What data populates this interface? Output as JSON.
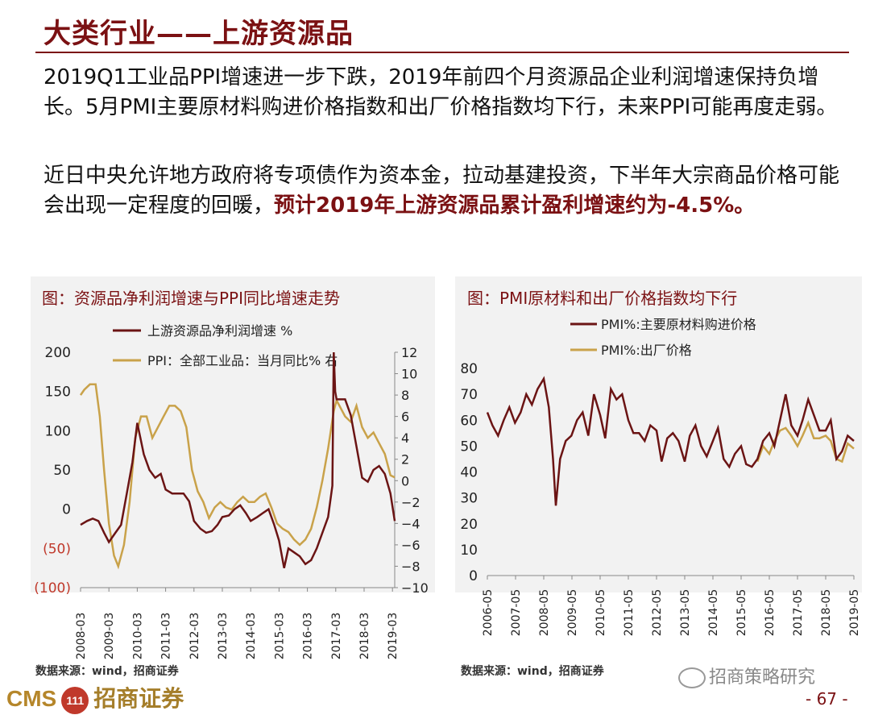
{
  "header": {
    "title": "大类行业——上游资源品"
  },
  "body": {
    "para1": "2019Q1工业品PPI增速进一步下跌，2019年前四个月资源品企业利润增速保持负增长。5月PMI主要原材料购进价格指数和出厂价格指数均下行，未来PPI可能再度走弱。",
    "para2_plain": "近日中央允许地方政府将专项债作为资本金，拉动基建投资，下半年大宗商品价格可能会出现一定程度的回暖，",
    "para2_emph": "预计2019年上游资源品累计盈利增速约为-4.5%。"
  },
  "colors": {
    "accent": "#7b1113",
    "series_dark": "#6b1414",
    "series_gold": "#c9a24a",
    "neg_label": "#c0392b"
  },
  "chart_data": [
    {
      "type": "line",
      "title": "图：资源品净利润增速与PPI同比增速走势",
      "x": [
        "2008-03",
        "2009-03",
        "2010-03",
        "2011-03",
        "2012-03",
        "2013-03",
        "2014-03",
        "2015-03",
        "2016-03",
        "2017-03",
        "2018-03",
        "2019-03"
      ],
      "left_ylim": [
        -100,
        200
      ],
      "left_ticks": [
        "200",
        "150",
        "100",
        "50",
        "0",
        "(50)",
        "(100)"
      ],
      "right_ylim": [
        -10,
        12
      ],
      "right_ticks": [
        "12",
        "10",
        "8",
        "6",
        "4",
        "2",
        "0",
        "−2",
        "−4",
        "−6",
        "−8",
        "−10"
      ],
      "source": "数据来源：wind，招商证券",
      "series": [
        {
          "name": "上游资源品净利润增速 %",
          "axis": "left",
          "x": [
            2008.17,
            2008.4,
            2008.6,
            2008.8,
            2009.0,
            2009.17,
            2009.4,
            2009.6,
            2009.8,
            2010.0,
            2010.17,
            2010.4,
            2010.6,
            2010.8,
            2011.0,
            2011.17,
            2011.4,
            2011.6,
            2011.8,
            2012.0,
            2012.17,
            2012.4,
            2012.6,
            2012.8,
            2013.0,
            2013.17,
            2013.4,
            2013.6,
            2013.8,
            2014.0,
            2014.17,
            2014.4,
            2014.6,
            2014.8,
            2015.0,
            2015.17,
            2015.35,
            2015.5,
            2015.7,
            2015.9,
            2016.1,
            2016.3,
            2016.5,
            2016.7,
            2016.9,
            2017.05,
            2017.1,
            2017.15,
            2017.2,
            2017.3,
            2017.5,
            2017.7,
            2017.9,
            2018.1,
            2018.3,
            2018.5,
            2018.7,
            2018.9,
            2019.1,
            2019.25
          ],
          "values": [
            -20,
            -15,
            -12,
            -15,
            -30,
            -42,
            -30,
            -20,
            20,
            60,
            110,
            70,
            50,
            40,
            45,
            25,
            20,
            20,
            20,
            10,
            -15,
            -25,
            -30,
            -28,
            -20,
            -10,
            -8,
            0,
            5,
            -5,
            -15,
            -10,
            -5,
            0,
            -20,
            -40,
            -75,
            -50,
            -55,
            -60,
            -70,
            -65,
            -50,
            -30,
            -10,
            30,
            200,
            150,
            140,
            140,
            140,
            120,
            80,
            40,
            35,
            50,
            55,
            45,
            20,
            -15
          ]
        },
        {
          "name": "PPI：全部工业品：当月同比%  右",
          "axis": "right",
          "x": [
            2008.17,
            2008.3,
            2008.5,
            2008.7,
            2008.85,
            2009.0,
            2009.17,
            2009.35,
            2009.5,
            2009.7,
            2009.9,
            2010.1,
            2010.3,
            2010.5,
            2010.7,
            2010.9,
            2011.1,
            2011.3,
            2011.5,
            2011.7,
            2011.9,
            2012.1,
            2012.3,
            2012.5,
            2012.7,
            2012.9,
            2013.1,
            2013.3,
            2013.5,
            2013.7,
            2013.9,
            2014.1,
            2014.3,
            2014.5,
            2014.7,
            2014.9,
            2015.1,
            2015.3,
            2015.5,
            2015.7,
            2015.9,
            2016.1,
            2016.3,
            2016.5,
            2016.7,
            2016.9,
            2017.1,
            2017.2,
            2017.3,
            2017.5,
            2017.7,
            2017.9,
            2018.1,
            2018.3,
            2018.5,
            2018.7,
            2018.9,
            2019.1,
            2019.25
          ],
          "values": [
            8,
            8.5,
            9,
            9,
            6,
            1,
            -4,
            -7,
            -8,
            -6,
            -2,
            4,
            6,
            6,
            4,
            5,
            6,
            7,
            7,
            6.5,
            5,
            1,
            -1,
            -2,
            -3.5,
            -2.5,
            -2,
            -2.5,
            -2.7,
            -2,
            -1.5,
            -2,
            -2,
            -1.5,
            -1.2,
            -2.5,
            -4,
            -4.5,
            -4.8,
            -5.5,
            -6,
            -5.5,
            -4.5,
            -2.5,
            0,
            3,
            6.5,
            7.5,
            7,
            6,
            5.5,
            7,
            5,
            4,
            4.5,
            3.5,
            2.5,
            0.5,
            0.3
          ]
        }
      ]
    },
    {
      "type": "line",
      "title": "图：PMI原材料和出厂价格指数均下行",
      "x": [
        "2006-05",
        "2007-05",
        "2008-05",
        "2009-05",
        "2010-05",
        "2011-05",
        "2012-05",
        "2013-05",
        "2014-05",
        "2015-05",
        "2016-05",
        "2017-05",
        "2018-05",
        "2019-05"
      ],
      "ylim": [
        0,
        80
      ],
      "yticks": [
        "80",
        "70",
        "60",
        "50",
        "40",
        "30",
        "20",
        "10",
        "0"
      ],
      "source": "数据来源：wind，招商证券",
      "series": [
        {
          "name": "PMI%:主要原材料购进价格",
          "x": [
            2006.42,
            2006.6,
            2006.8,
            2007.0,
            2007.2,
            2007.4,
            2007.6,
            2007.8,
            2008.0,
            2008.2,
            2008.42,
            2008.6,
            2008.75,
            2008.85,
            2009.0,
            2009.2,
            2009.4,
            2009.6,
            2009.8,
            2010.0,
            2010.2,
            2010.42,
            2010.6,
            2010.8,
            2011.0,
            2011.2,
            2011.42,
            2011.6,
            2011.8,
            2012.0,
            2012.2,
            2012.42,
            2012.6,
            2012.8,
            2013.0,
            2013.2,
            2013.42,
            2013.6,
            2013.8,
            2014.0,
            2014.2,
            2014.42,
            2014.6,
            2014.8,
            2015.0,
            2015.2,
            2015.42,
            2015.6,
            2015.8,
            2016.0,
            2016.2,
            2016.42,
            2016.6,
            2016.8,
            2017.0,
            2017.2,
            2017.42,
            2017.6,
            2017.8,
            2018.0,
            2018.2,
            2018.42,
            2018.6,
            2018.8,
            2019.0,
            2019.2,
            2019.42
          ],
          "values": [
            63,
            58,
            54,
            60,
            65,
            59,
            63,
            70,
            66,
            72,
            76,
            65,
            45,
            27,
            45,
            52,
            54,
            60,
            63,
            54,
            70,
            62,
            53,
            72,
            68,
            70,
            60,
            55,
            55,
            52,
            58,
            56,
            44,
            53,
            55,
            52,
            44,
            54,
            58,
            50,
            46,
            52,
            57,
            45,
            42,
            47,
            50,
            43,
            42,
            45,
            52,
            55,
            50,
            60,
            70,
            58,
            54,
            60,
            68,
            62,
            56,
            56,
            60,
            45,
            48,
            54,
            52
          ]
        },
        {
          "name": "PMI%:出厂价格",
          "x": [
            2016.0,
            2016.2,
            2016.42,
            2016.6,
            2016.8,
            2017.0,
            2017.2,
            2017.42,
            2017.6,
            2017.8,
            2018.0,
            2018.2,
            2018.42,
            2018.6,
            2018.8,
            2019.0,
            2019.2,
            2019.42
          ],
          "values": [
            44,
            50,
            47,
            52,
            56,
            57,
            54,
            50,
            54,
            59,
            53,
            53,
            54,
            52,
            45,
            44,
            51,
            49
          ]
        }
      ]
    }
  ],
  "footer": {
    "logo_en": "CMS",
    "logo_badge": "111",
    "logo_cn": "招商证券",
    "wechat": "招商策略研究",
    "page": "- 67 -"
  }
}
